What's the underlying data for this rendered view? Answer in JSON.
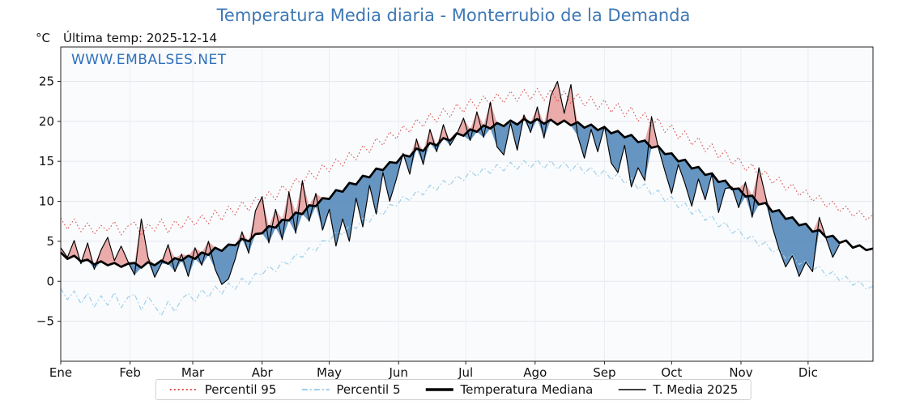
{
  "title": "Temperatura Media diaria - Monterrubio de la Demanda",
  "watermark": "WWW.EMBALSES.NET",
  "header": {
    "units": "°C",
    "last_temp": "Última temp: 2025-12-14"
  },
  "chart_data": {
    "type": "line",
    "xlabel": "",
    "ylabel": "°C",
    "xlim": [
      1,
      364
    ],
    "ylim": [
      -10,
      29.3
    ],
    "y_ticks": [
      -5,
      0,
      5,
      10,
      15,
      20,
      25
    ],
    "month_labels": [
      "Ene",
      "Feb",
      "Mar",
      "Abr",
      "May",
      "Jun",
      "Jul",
      "Ago",
      "Sep",
      "Oct",
      "Nov",
      "Dic"
    ],
    "month_start_days": [
      1,
      32,
      60,
      91,
      121,
      152,
      182,
      213,
      244,
      274,
      305,
      335
    ],
    "grid": true,
    "legend_position": "bottom",
    "fill_above_color": "rgba(217,83,79,0.48)",
    "fill_below_color": "rgba(62,120,176,0.78)",
    "x_days": [
      1,
      4,
      7,
      10,
      13,
      16,
      19,
      22,
      25,
      28,
      31,
      34,
      37,
      40,
      43,
      46,
      49,
      52,
      55,
      58,
      61,
      64,
      67,
      70,
      73,
      76,
      79,
      82,
      85,
      88,
      91,
      94,
      97,
      100,
      103,
      106,
      109,
      112,
      115,
      118,
      121,
      124,
      127,
      130,
      133,
      136,
      139,
      142,
      145,
      148,
      151,
      154,
      157,
      160,
      163,
      166,
      169,
      172,
      175,
      178,
      181,
      184,
      187,
      190,
      193,
      196,
      199,
      202,
      205,
      208,
      211,
      214,
      217,
      220,
      223,
      226,
      229,
      232,
      235,
      238,
      241,
      244,
      247,
      250,
      253,
      256,
      259,
      262,
      265,
      268,
      271,
      274,
      277,
      280,
      283,
      286,
      289,
      292,
      295,
      298,
      301,
      304,
      307,
      310,
      313,
      316,
      319,
      322,
      325,
      328,
      331,
      334,
      337,
      340,
      343,
      346,
      349,
      352,
      355,
      358,
      361,
      364
    ],
    "series": [
      {
        "name": "Percentil 95",
        "role": "p95",
        "style": "dotted",
        "color": "#d9534f",
        "values": [
          7.9,
          6.5,
          7.8,
          6.2,
          7.3,
          5.9,
          7.0,
          6.3,
          7.5,
          5.8,
          6.9,
          7.4,
          5.7,
          7.2,
          6.3,
          7.8,
          6.0,
          7.6,
          6.6,
          8.1,
          7.0,
          8.3,
          7.2,
          8.9,
          7.6,
          9.4,
          8.3,
          10.0,
          8.8,
          10.5,
          9.8,
          11.2,
          10.2,
          12.0,
          11.1,
          12.9,
          12.0,
          13.8,
          12.8,
          14.6,
          13.7,
          15.3,
          14.4,
          16.1,
          15.2,
          17.0,
          16.1,
          17.9,
          17.0,
          18.7,
          17.8,
          19.5,
          18.6,
          20.3,
          19.3,
          21.0,
          19.9,
          21.6,
          20.5,
          22.2,
          21.1,
          22.8,
          21.6,
          23.2,
          22.0,
          23.5,
          22.3,
          23.8,
          22.5,
          24.0,
          22.7,
          24.1,
          22.6,
          24.0,
          22.4,
          23.8,
          22.2,
          23.5,
          21.9,
          23.1,
          21.5,
          22.7,
          21.1,
          22.3,
          20.6,
          21.8,
          20.0,
          21.1,
          19.3,
          20.4,
          18.6,
          19.6,
          17.8,
          18.8,
          17.0,
          18.0,
          16.2,
          17.2,
          15.4,
          16.4,
          14.6,
          15.5,
          13.8,
          14.7,
          13.0,
          13.8,
          12.2,
          13.0,
          11.4,
          12.2,
          10.7,
          11.4,
          10.0,
          10.7,
          9.3,
          10.0,
          8.7,
          9.4,
          8.1,
          8.8,
          7.7,
          8.3
        ]
      },
      {
        "name": "Percentil 5",
        "role": "p5",
        "style": "dashed",
        "color": "#9ecfe8",
        "values": [
          -0.9,
          -2.3,
          -1.2,
          -2.8,
          -1.5,
          -3.2,
          -1.8,
          -3.0,
          -1.4,
          -3.3,
          -2.0,
          -1.6,
          -3.6,
          -1.9,
          -3.1,
          -4.3,
          -2.5,
          -3.8,
          -2.2,
          -1.5,
          -2.6,
          -1.0,
          -2.0,
          -0.6,
          -1.6,
          -0.2,
          -1.0,
          0.4,
          -0.4,
          1.0,
          0.8,
          1.9,
          1.2,
          2.5,
          2.1,
          3.4,
          3.0,
          4.2,
          3.8,
          5.1,
          5.0,
          6.2,
          5.8,
          7.0,
          6.6,
          7.9,
          7.4,
          8.8,
          8.3,
          9.6,
          9.4,
          10.6,
          10.1,
          11.3,
          10.8,
          12.0,
          11.4,
          12.6,
          12.0,
          13.2,
          12.6,
          13.8,
          13.1,
          14.2,
          13.5,
          14.6,
          13.8,
          14.9,
          14.0,
          15.1,
          14.2,
          15.2,
          14.1,
          15.1,
          14.0,
          14.9,
          13.8,
          14.7,
          13.5,
          14.3,
          13.1,
          13.9,
          12.7,
          13.5,
          12.2,
          12.9,
          11.5,
          12.2,
          10.8,
          11.4,
          10.0,
          10.6,
          9.2,
          9.8,
          8.4,
          9.0,
          7.6,
          8.2,
          6.8,
          7.4,
          6.0,
          6.5,
          5.2,
          5.7,
          4.4,
          4.9,
          3.6,
          4.1,
          2.8,
          3.3,
          2.1,
          2.6,
          1.4,
          1.9,
          0.7,
          1.2,
          0.1,
          0.6,
          -0.5,
          0.0,
          -1.0,
          -0.6
        ]
      },
      {
        "name": "Temperatura Mediana",
        "role": "median",
        "style": "solid-thick",
        "color": "#000000",
        "values": [
          3.6,
          2.8,
          3.2,
          2.5,
          2.7,
          2.1,
          2.5,
          2.0,
          2.3,
          1.8,
          2.2,
          2.3,
          1.7,
          2.4,
          2.0,
          2.6,
          2.2,
          2.9,
          2.6,
          3.2,
          2.8,
          3.6,
          3.3,
          4.2,
          3.8,
          4.6,
          4.5,
          5.3,
          5.0,
          5.9,
          6.0,
          6.9,
          6.7,
          7.7,
          7.6,
          8.6,
          8.4,
          9.5,
          9.4,
          10.4,
          10.3,
          11.4,
          11.2,
          12.3,
          12.1,
          13.2,
          13.0,
          14.1,
          13.9,
          14.9,
          14.8,
          15.8,
          15.6,
          16.6,
          16.3,
          17.3,
          17.0,
          17.9,
          17.6,
          18.5,
          18.2,
          19.0,
          18.7,
          19.5,
          19.1,
          19.8,
          19.4,
          20.1,
          19.6,
          20.3,
          19.8,
          20.3,
          19.7,
          20.2,
          19.6,
          20.1,
          19.5,
          19.9,
          19.2,
          19.6,
          18.9,
          19.3,
          18.5,
          18.8,
          18.0,
          18.3,
          17.4,
          17.6,
          16.7,
          16.9,
          15.9,
          16.0,
          15.0,
          15.2,
          14.1,
          14.3,
          13.3,
          13.5,
          12.4,
          12.6,
          11.5,
          11.6,
          10.6,
          10.7,
          9.6,
          9.8,
          8.7,
          8.9,
          7.8,
          8.0,
          7.0,
          7.2,
          6.2,
          6.4,
          5.5,
          5.7,
          4.8,
          5.1,
          4.2,
          4.5,
          3.9,
          4.1
        ]
      },
      {
        "name": "T. Media 2025",
        "role": "current",
        "style": "solid-thin",
        "color": "#000000",
        "values": [
          4.2,
          3.0,
          5.1,
          2.2,
          4.8,
          1.5,
          3.9,
          5.5,
          2.6,
          4.4,
          2.5,
          0.8,
          7.8,
          3.0,
          0.5,
          2.2,
          4.6,
          1.2,
          3.4,
          0.6,
          4.2,
          2.0,
          5.0,
          1.5,
          -0.4,
          0.3,
          2.8,
          6.2,
          3.5,
          8.8,
          10.6,
          4.8,
          9.0,
          5.2,
          11.2,
          6.0,
          12.6,
          7.5,
          11.0,
          6.4,
          9.0,
          4.4,
          7.8,
          5.0,
          10.4,
          6.8,
          12.0,
          8.4,
          13.6,
          10.0,
          12.8,
          16.0,
          13.4,
          17.8,
          14.6,
          19.0,
          16.2,
          19.6,
          17.0,
          18.4,
          20.4,
          17.6,
          21.2,
          18.0,
          22.4,
          16.8,
          15.8,
          19.8,
          16.4,
          20.8,
          18.6,
          21.8,
          17.9,
          23.2,
          25.0,
          21.0,
          24.6,
          18.2,
          15.4,
          19.0,
          16.2,
          19.4,
          14.8,
          13.6,
          17.0,
          11.8,
          14.2,
          12.6,
          20.6,
          16.8,
          13.8,
          11.0,
          14.6,
          12.2,
          9.4,
          12.8,
          10.2,
          13.4,
          8.6,
          11.6,
          11.8,
          9.2,
          12.4,
          8.0,
          14.2,
          10.6,
          6.8,
          4.0,
          1.8,
          3.2,
          0.6,
          2.4,
          1.2,
          8.0,
          5.4,
          3.0,
          4.6,
          null,
          null,
          null,
          null,
          null
        ]
      }
    ]
  },
  "legend": {
    "items": [
      {
        "label": "Percentil 95"
      },
      {
        "label": "Percentil 5"
      },
      {
        "label": "Temperatura Mediana"
      },
      {
        "label": "T. Media 2025"
      }
    ]
  }
}
